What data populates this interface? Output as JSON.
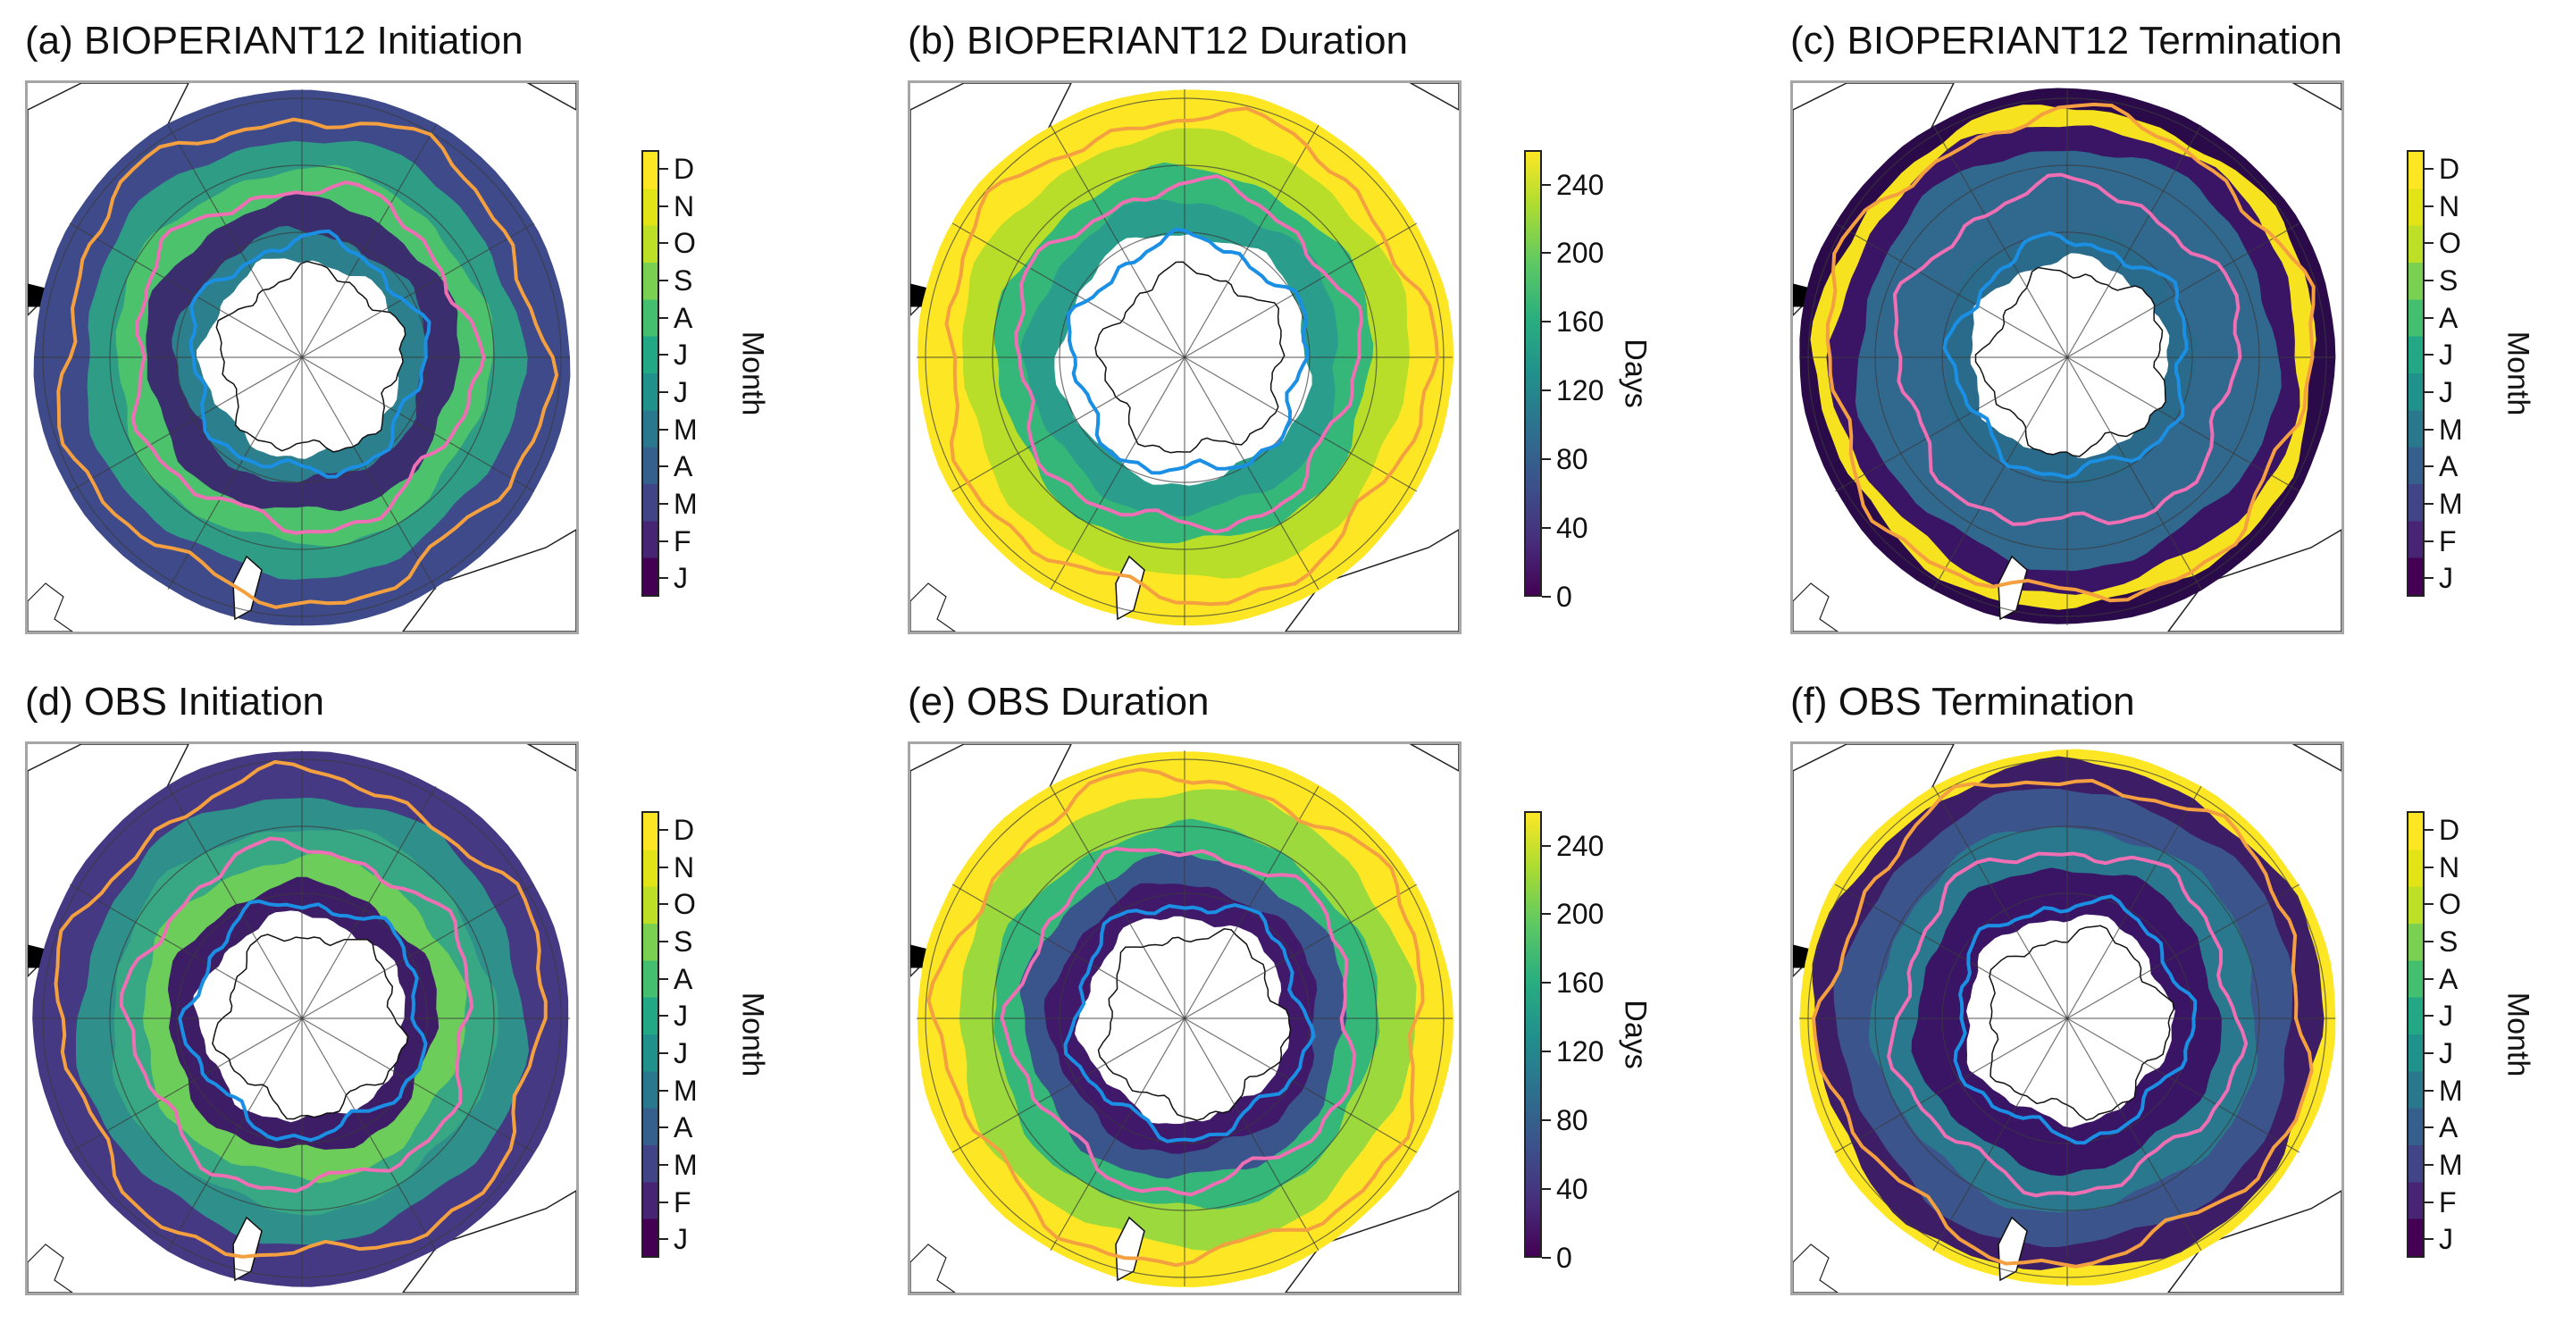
{
  "panels": [
    {
      "title": "(a) BIOPERIANT12 Initiation",
      "colorbar": "month",
      "field": "init_model"
    },
    {
      "title": "(b) BIOPERIANT12 Duration",
      "colorbar": "days",
      "field": "dur_model"
    },
    {
      "title": "(c) BIOPERIANT12 Termination",
      "colorbar": "month",
      "field": "term_model"
    },
    {
      "title": "(d) OBS Initiation",
      "colorbar": "month",
      "field": "init_obs"
    },
    {
      "title": "(e) OBS Duration",
      "colorbar": "days",
      "field": "dur_obs"
    },
    {
      "title": "(f) OBS Termination",
      "colorbar": "month",
      "field": "term_obs"
    }
  ],
  "colorbars": {
    "month": {
      "label": "Month",
      "ticks": [
        "J",
        "F",
        "M",
        "A",
        "M",
        "J",
        "J",
        "A",
        "S",
        "O",
        "N",
        "D"
      ]
    },
    "days": {
      "label": "Days",
      "ticks": [
        "0",
        "40",
        "80",
        "120",
        "160",
        "200",
        "240"
      ],
      "max": 260
    }
  },
  "front_colors": {
    "outer": "#f4a040",
    "middle": "#ee6fb4",
    "inner": "#1a8fe3"
  },
  "colormap": "viridis"
}
